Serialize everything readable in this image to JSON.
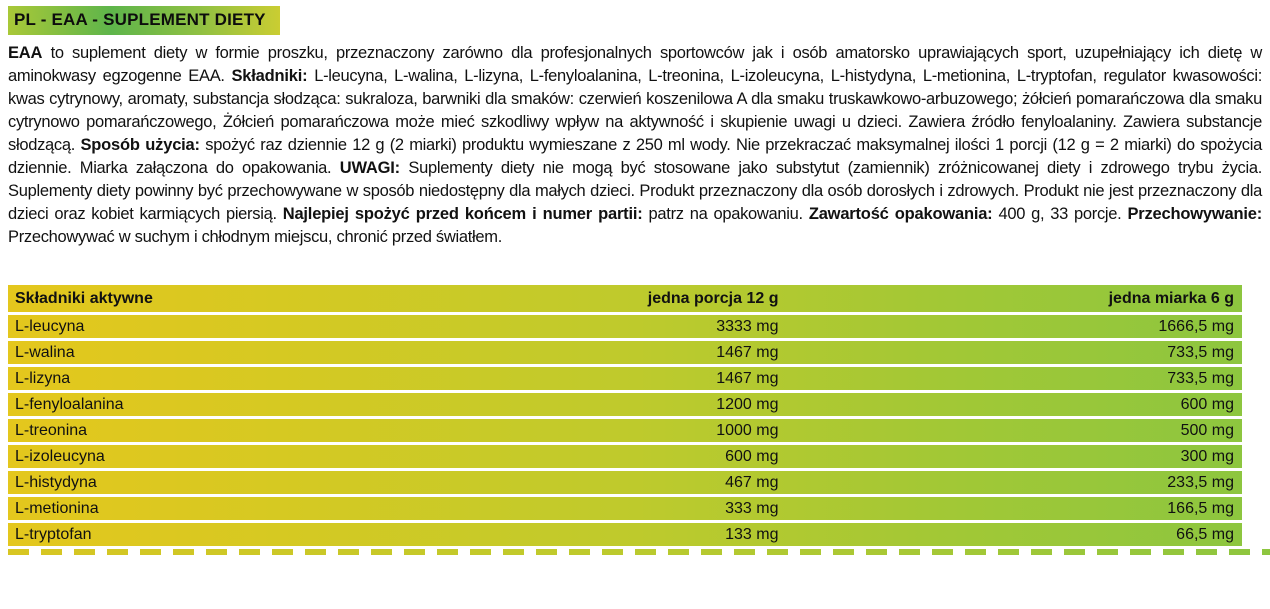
{
  "title": "PL - EAA - SUPLEMENT DIETY",
  "description": {
    "segments": [
      {
        "text": "EAA",
        "bold": true
      },
      {
        "text": " to suplement diety w formie proszku, przeznaczony zarówno dla profesjonalnych sportowców jak i osób amatorsko uprawiających sport, uzupełniający ich dietę w aminokwasy egzogenne EAA. ",
        "bold": false
      },
      {
        "text": "Składniki:",
        "bold": true
      },
      {
        "text": " L-leucyna, L-walina, L-lizyna, L-fenyloalanina, L-treonina, L-izoleucyna, L-histydyna, L-metionina, L-tryptofan, regulator kwasowości: kwas cytrynowy, aromaty, substancja słodząca: sukraloza, barwniki dla smaków: czerwień koszenilowa A dla smaku truskawkowo-arbuzowego; żółcień pomarańczowa dla smaku cytrynowo pomarańczowego, Żółcień pomarańczowa może mieć szkodliwy wpływ na aktywność i skupienie uwagi u dzieci. Zawiera źródło fenyloalaniny. Zawiera substancje słodzącą. ",
        "bold": false
      },
      {
        "text": "Sposób użycia:",
        "bold": true
      },
      {
        "text": " spożyć raz dziennie 12 g (2 miarki) produktu wymieszane z 250 ml wody. Nie przekraczać maksymalnej ilości 1 porcji (12 g = 2 miarki) do spożycia dziennie. Miarka załączona do opakowania. ",
        "bold": false
      },
      {
        "text": "UWAGI:",
        "bold": true
      },
      {
        "text": " Suplementy diety nie mogą być stosowane jako substytut (zamiennik) zróżnicowanej diety i zdrowego trybu życia. Suplementy diety powinny być przechowywane w sposób niedostępny dla małych dzieci. Produkt przeznaczony dla osób  dorosłych i zdrowych. Produkt nie jest przeznaczony dla dzieci oraz kobiet karmiących piersią. ",
        "bold": false
      },
      {
        "text": "Najlepiej spożyć przed końcem i numer partii:",
        "bold": true
      },
      {
        "text": " patrz na opakowaniu. ",
        "bold": false
      },
      {
        "text": "Zawartość opakowania:",
        "bold": true
      },
      {
        "text": " 400 g, 33 porcje. ",
        "bold": false
      },
      {
        "text": "Przechowywanie:",
        "bold": true
      },
      {
        "text": " Przechowywać w suchym i chłodnym miejscu, chronić przed światłem.",
        "bold": false
      }
    ]
  },
  "table": {
    "headers": [
      "Składniki aktywne",
      "jedna porcja 12 g",
      "jedna miarka 6 g"
    ],
    "rows": [
      [
        "L-leucyna",
        "3333 mg",
        "1666,5 mg"
      ],
      [
        "L-walina",
        "1467 mg",
        "733,5 mg"
      ],
      [
        "L-lizyna",
        "1467 mg",
        "733,5 mg"
      ],
      [
        "L-fenyloalanina",
        "1200 mg",
        "600 mg"
      ],
      [
        "L-treonina",
        "1000 mg",
        "500 mg"
      ],
      [
        "L-izoleucyna",
        "600 mg",
        "300 mg"
      ],
      [
        "L-histydyna",
        "467 mg",
        "233,5 mg"
      ],
      [
        "L-metionina",
        "333 mg",
        "166,5 mg"
      ],
      [
        "L-tryptofan",
        "133 mg",
        "66,5 mg"
      ]
    ]
  },
  "colors": {
    "row_gold": "#e4c71d",
    "row_olive": "#bfca2c",
    "row_green": "#8dc63f",
    "title_green": "#5eb54b",
    "title_yellow": "#cacd32",
    "text": "#111111"
  }
}
